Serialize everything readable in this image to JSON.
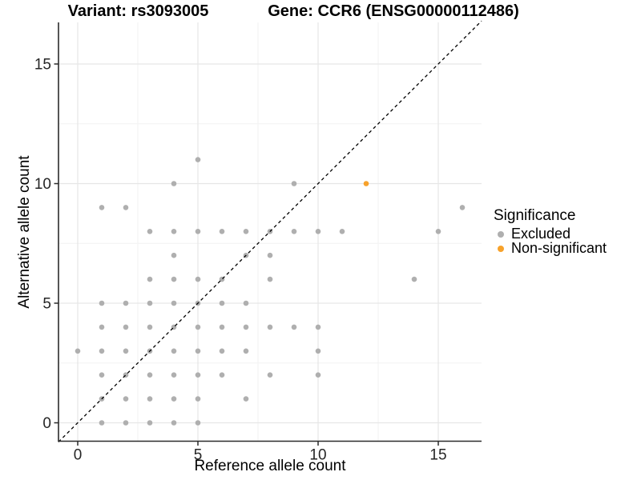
{
  "titles": {
    "variant": "Variant: rs3093005",
    "gene": "Gene: CCR6 (ENSG00000112486)"
  },
  "chart_data": {
    "type": "scatter",
    "xlabel": "Reference allele count",
    "ylabel": "Alternative allele count",
    "xlim": [
      -0.8,
      16.8
    ],
    "ylim": [
      -0.8,
      16.7
    ],
    "x_ticks": [
      0,
      5,
      10,
      15
    ],
    "y_ticks": [
      0,
      5,
      10,
      15
    ],
    "x_minor": [
      2.5,
      7.5,
      12.5
    ],
    "y_minor": [
      2.5,
      7.5,
      12.5
    ],
    "grid": true,
    "identity_line": {
      "equation": "y = x",
      "style": "dashed",
      "color": "#000000"
    },
    "legend": {
      "title": "Significance",
      "position": "right",
      "entries": [
        {
          "label": "Excluded",
          "color": "#AFAFAF"
        },
        {
          "label": "Non-significant",
          "color": "#F7A22B"
        }
      ]
    },
    "series": [
      {
        "name": "Excluded",
        "color": "#AFAFAF",
        "points": [
          [
            1,
            0
          ],
          [
            2,
            0
          ],
          [
            3,
            0
          ],
          [
            4,
            0
          ],
          [
            5,
            0
          ],
          [
            1,
            1
          ],
          [
            2,
            1
          ],
          [
            3,
            1
          ],
          [
            4,
            1
          ],
          [
            5,
            1
          ],
          [
            7,
            1
          ],
          [
            1,
            2
          ],
          [
            2,
            2
          ],
          [
            3,
            2
          ],
          [
            4,
            2
          ],
          [
            5,
            2
          ],
          [
            6,
            2
          ],
          [
            8,
            2
          ],
          [
            10,
            2
          ],
          [
            0,
            3
          ],
          [
            1,
            3
          ],
          [
            2,
            3
          ],
          [
            3,
            3
          ],
          [
            4,
            3
          ],
          [
            5,
            3
          ],
          [
            6,
            3
          ],
          [
            7,
            3
          ],
          [
            10,
            3
          ],
          [
            1,
            4
          ],
          [
            2,
            4
          ],
          [
            3,
            4
          ],
          [
            4,
            4
          ],
          [
            5,
            4
          ],
          [
            6,
            4
          ],
          [
            7,
            4
          ],
          [
            8,
            4
          ],
          [
            9,
            4
          ],
          [
            10,
            4
          ],
          [
            1,
            5
          ],
          [
            2,
            5
          ],
          [
            3,
            5
          ],
          [
            4,
            5
          ],
          [
            5,
            5
          ],
          [
            6,
            5
          ],
          [
            7,
            5
          ],
          [
            3,
            6
          ],
          [
            4,
            6
          ],
          [
            5,
            6
          ],
          [
            6,
            6
          ],
          [
            8,
            6
          ],
          [
            14,
            6
          ],
          [
            4,
            7
          ],
          [
            7,
            7
          ],
          [
            8,
            7
          ],
          [
            3,
            8
          ],
          [
            4,
            8
          ],
          [
            5,
            8
          ],
          [
            6,
            8
          ],
          [
            7,
            8
          ],
          [
            8,
            8
          ],
          [
            9,
            8
          ],
          [
            10,
            8
          ],
          [
            11,
            8
          ],
          [
            15,
            8
          ],
          [
            1,
            9
          ],
          [
            2,
            9
          ],
          [
            16,
            9
          ],
          [
            4,
            10
          ],
          [
            9,
            10
          ],
          [
            5,
            11
          ]
        ]
      },
      {
        "name": "Non-significant",
        "color": "#F7A22B",
        "points": [
          [
            12,
            10
          ]
        ]
      }
    ],
    "colors": {
      "major_grid": "#e6e6e6",
      "minor_grid": "#f2f2f2",
      "axis_line": "#2b2b2b",
      "tick_text": "#262626"
    }
  }
}
